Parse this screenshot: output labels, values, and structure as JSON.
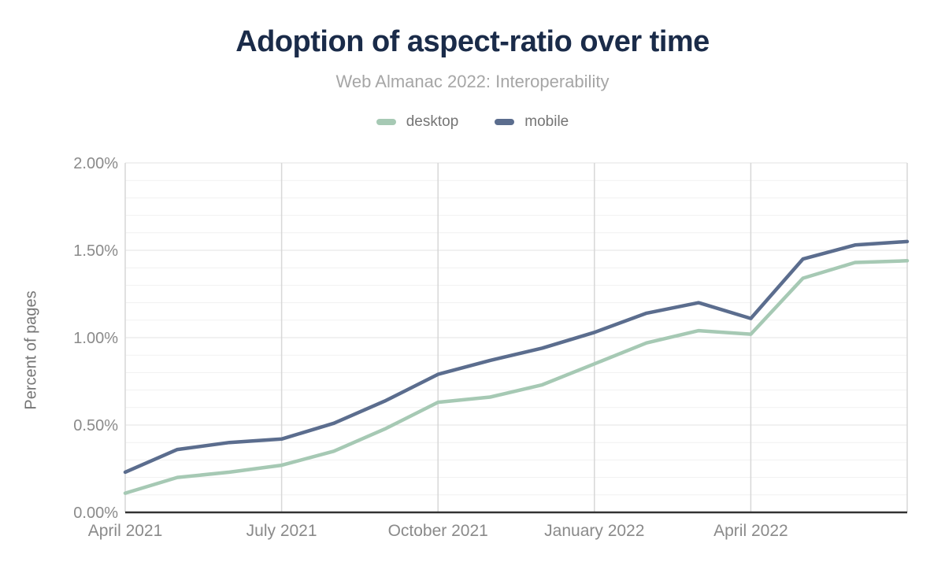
{
  "header": {
    "title": "Adoption of aspect-ratio over time",
    "subtitle": "Web Almanac 2022: Interoperability"
  },
  "legend": [
    {
      "label": "desktop",
      "color": "#a6c9b4"
    },
    {
      "label": "mobile",
      "color": "#5b6d8e"
    }
  ],
  "colors": {
    "title": "#1a2b49",
    "subtitle_text": "#a6a6a6",
    "axis_text": "#8a8a8a",
    "axis_line": "#333333",
    "grid_vertical": "#d7d7d7",
    "grid_major": "#e3e3e3",
    "grid_minor": "#f1f1f1",
    "desktop": "#a6c9b4",
    "mobile": "#5b6d8e"
  },
  "chart_data": {
    "type": "line",
    "title": "Adoption of aspect-ratio over time",
    "subtitle": "Web Almanac 2022: Interoperability",
    "xlabel": "",
    "ylabel": "Percent of pages",
    "ylim": [
      0,
      2
    ],
    "grid": "horizontal-minor-0.1-and-vertical-quarterly",
    "legend_position": "top-center",
    "x": [
      "April 2021",
      "May 2021",
      "June 2021",
      "July 2021",
      "August 2021",
      "September 2021",
      "October 2021",
      "November 2021",
      "December 2021",
      "January 2022",
      "February 2022",
      "March 2022",
      "April 2022",
      "May 2022",
      "June 2022",
      "July 2022"
    ],
    "x_ticks": [
      {
        "label": "April 2021",
        "index": 0
      },
      {
        "label": "July 2021",
        "index": 3
      },
      {
        "label": "October 2021",
        "index": 6
      },
      {
        "label": "January 2022",
        "index": 9
      },
      {
        "label": "April 2022",
        "index": 12
      }
    ],
    "x_gridline_indices": [
      0,
      3,
      6,
      9,
      12,
      15
    ],
    "y_ticks": [
      {
        "label": "0.00%",
        "value": 0
      },
      {
        "label": "0.50%",
        "value": 0.5
      },
      {
        "label": "1.00%",
        "value": 1
      },
      {
        "label": "1.50%",
        "value": 1.5
      },
      {
        "label": "2.00%",
        "value": 2
      }
    ],
    "series": [
      {
        "name": "desktop",
        "color": "#a6c9b4",
        "values": [
          0.11,
          0.2,
          0.23,
          0.27,
          0.35,
          0.48,
          0.63,
          0.66,
          0.73,
          0.85,
          0.97,
          1.04,
          1.02,
          1.34,
          1.43,
          1.44
        ]
      },
      {
        "name": "mobile",
        "color": "#5b6d8e",
        "values": [
          0.23,
          0.36,
          0.4,
          0.42,
          0.51,
          0.64,
          0.79,
          0.87,
          0.94,
          1.03,
          1.14,
          1.2,
          1.11,
          1.45,
          1.53,
          1.55
        ]
      }
    ]
  }
}
